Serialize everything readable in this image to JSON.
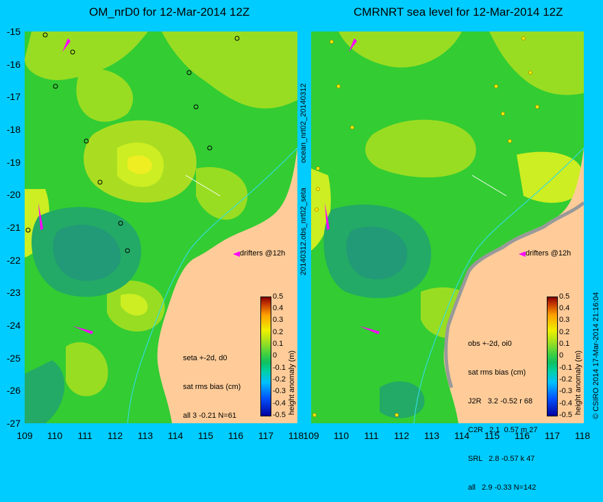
{
  "left": {
    "title": "OM_nrD0 for 12-Mar-2014 12Z",
    "drifters_label": "drifters @12h",
    "stats": [
      "seta +-2d, d0",
      "sat rms bias (cm)",
      "all 3 -0.21 N=61"
    ]
  },
  "right": {
    "title": "CMRNRT sea level  for 12-Mar-2014 12Z",
    "drifters_label": "drifters @12h",
    "stats": [
      "obs +-2d, oi0",
      "sat rms bias (cm)",
      "J2R   3.2 -0.52 r 68",
      "C2R   2.1  0.57 m 27",
      "SRL   2.8 -0.57 k 47",
      "all   2.9 -0.33 N=142"
    ],
    "side_label_top": "ocean_nrt02_20140312",
    "side_label_bottom": "20140312.obs_nrt02_seta",
    "footer": "© CSIRO 2014  17-Mar-2014 21:16:04"
  },
  "axes": {
    "lat_ticks": [
      "-15",
      "-16",
      "-17",
      "-18",
      "-19",
      "-20",
      "-21",
      "-22",
      "-23",
      "-24",
      "-25",
      "-26",
      "-27"
    ],
    "lon_ticks": [
      "109",
      "110",
      "111",
      "112",
      "113",
      "114",
      "115",
      "116",
      "117",
      "118"
    ]
  },
  "colorbar": {
    "label": "height anomaly (m)",
    "ticks": [
      "0.5",
      "0.4",
      "0.3",
      "0.2",
      "0.1",
      "0",
      "-0.1",
      "-0.2",
      "-0.3",
      "-0.4",
      "-0.5"
    ]
  },
  "colors": {
    "background": "#00ccff",
    "land": "#ffcc99",
    "ocean_base": "#33cc33",
    "ocean_high": "#ccee22",
    "ocean_low": "#22aa66",
    "drifter": "#ff00ff",
    "coast_path": "#33dddd"
  }
}
